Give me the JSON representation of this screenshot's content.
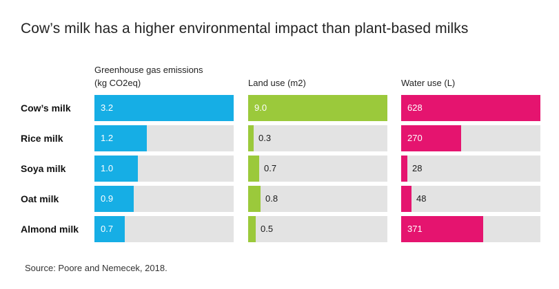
{
  "title": "Cow’s milk has a higher environmental impact than plant-based milks",
  "source": "Source: Poore and Nemecek, 2018.",
  "colors": {
    "ghg": "#16aee5",
    "land": "#9bc93b",
    "water": "#e5146f",
    "track": "#e3e3e3"
  },
  "chart_data": {
    "type": "bar",
    "orientation": "horizontal",
    "categories": [
      "Cow’s milk",
      "Rice milk",
      "Soya milk",
      "Oat milk",
      "Almond milk"
    ],
    "panels": [
      {
        "key": "ghg",
        "title_lines": [
          "Greenhouse gas emissions",
          "(kg CO2eq)"
        ],
        "values": [
          3.2,
          1.2,
          1.0,
          0.9,
          0.7
        ],
        "labels": [
          "3.2",
          "1.2",
          "1.0",
          "0.9",
          "0.7"
        ],
        "max": 3.2
      },
      {
        "key": "land",
        "title_lines": [
          "Land use (m2)"
        ],
        "values": [
          9.0,
          0.3,
          0.7,
          0.8,
          0.5
        ],
        "labels": [
          "9.0",
          "0.3",
          "0.7",
          "0.8",
          "0.5"
        ],
        "max": 9.0
      },
      {
        "key": "water",
        "title_lines": [
          "Water use (L)"
        ],
        "values": [
          628,
          270,
          28,
          48,
          371
        ],
        "labels": [
          "628",
          "270",
          "28",
          "48",
          "371"
        ],
        "max": 628
      }
    ]
  }
}
